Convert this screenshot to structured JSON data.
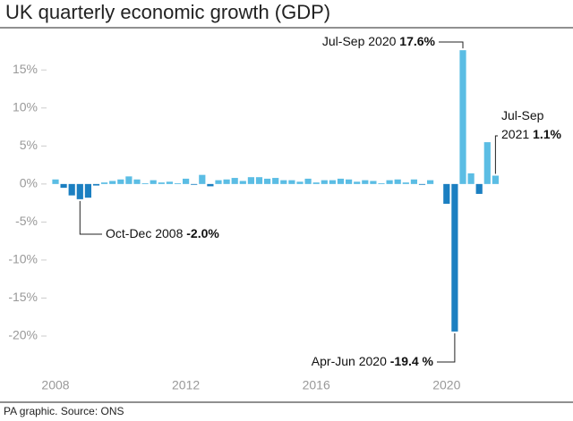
{
  "chart_data": {
    "type": "bar",
    "title": "UK quarterly economic growth (GDP)",
    "source": "PA graphic. Source: ONS",
    "categories": [
      "2008",
      null,
      null,
      null,
      null,
      null,
      null,
      null,
      null,
      null,
      null,
      null,
      null,
      null,
      null,
      null,
      "2012",
      null,
      null,
      null,
      null,
      null,
      null,
      null,
      null,
      null,
      null,
      null,
      null,
      null,
      null,
      null,
      "2016",
      null,
      null,
      null,
      null,
      null,
      null,
      null,
      null,
      null,
      null,
      null,
      null,
      null,
      null,
      null,
      "2020",
      null,
      null,
      null,
      null,
      null,
      null
    ],
    "values": [
      0.6,
      -0.5,
      -1.5,
      -2.0,
      -1.8,
      -0.2,
      0.2,
      0.4,
      0.6,
      1.0,
      0.6,
      0.1,
      0.5,
      0.2,
      0.3,
      0.1,
      0.7,
      -0.1,
      1.2,
      -0.3,
      0.5,
      0.6,
      0.8,
      0.4,
      0.9,
      0.9,
      0.7,
      0.8,
      0.5,
      0.5,
      0.3,
      0.7,
      0.2,
      0.5,
      0.5,
      0.7,
      0.6,
      0.3,
      0.5,
      0.4,
      0.1,
      0.5,
      0.6,
      0.2,
      0.6,
      -0.1,
      0.5,
      0.0,
      -2.6,
      -19.4,
      17.6,
      1.4,
      -1.3,
      5.5,
      1.1
    ],
    "value_labels": [
      null,
      null,
      null,
      "-2.0%",
      null,
      null,
      null,
      null,
      null,
      null,
      null,
      null,
      null,
      null,
      null,
      null,
      null,
      null,
      null,
      null,
      null,
      null,
      null,
      null,
      null,
      null,
      null,
      null,
      null,
      null,
      null,
      null,
      null,
      null,
      null,
      null,
      null,
      null,
      null,
      null,
      null,
      null,
      null,
      null,
      null,
      null,
      null,
      null,
      null,
      "-19.4 %",
      "17.6%",
      null,
      null,
      null,
      "1.1%"
    ],
    "annotations": [
      null,
      null,
      null,
      [
        "Oct-Dec 2008"
      ],
      null,
      null,
      null,
      null,
      null,
      null,
      null,
      null,
      null,
      null,
      null,
      null,
      null,
      null,
      null,
      null,
      null,
      null,
      null,
      null,
      null,
      null,
      null,
      null,
      null,
      null,
      null,
      null,
      null,
      null,
      null,
      null,
      null,
      null,
      null,
      null,
      null,
      null,
      null,
      null,
      null,
      null,
      null,
      null,
      null,
      [
        "Apr-Jun 2020"
      ],
      [
        "Jul-Sep 2020"
      ],
      null,
      null,
      null,
      [
        "Jul-Sep",
        "2021"
      ]
    ],
    "color_positive": "#5bbde4",
    "color_negative": "#1b7fc1",
    "ylim": [
      -24,
      19.5
    ],
    "yticks": [
      {
        "value": 15,
        "label": "15%"
      },
      {
        "value": 10,
        "label": "10%"
      },
      {
        "value": 5,
        "label": "5%"
      },
      {
        "value": 0,
        "label": "0%"
      },
      {
        "value": -5,
        "label": "-5%"
      },
      {
        "value": -10,
        "label": "-10%"
      },
      {
        "value": -15,
        "label": "-15%"
      },
      {
        "value": -20,
        "label": "-20%"
      }
    ],
    "grid": false
  }
}
